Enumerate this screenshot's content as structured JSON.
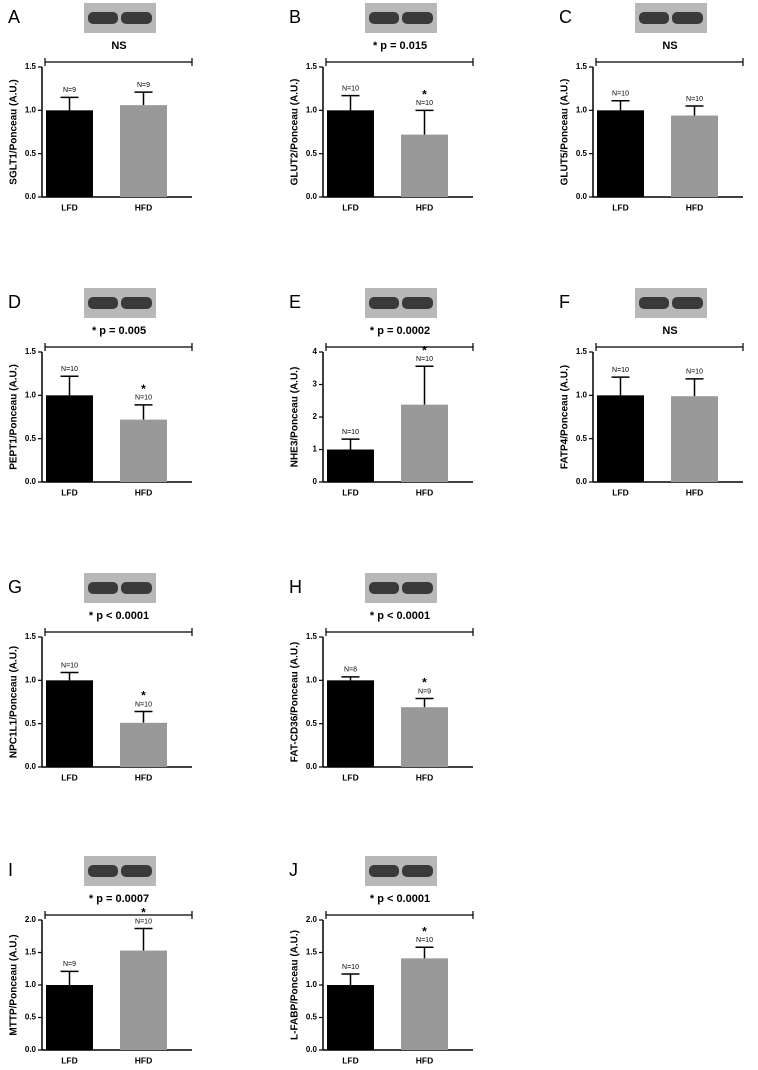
{
  "chart_data": [
    {
      "type": "bar",
      "panel": "A",
      "y_label": "SGLT1/Ponceau (A.U.)",
      "categories": [
        "LFD",
        "HFD"
      ],
      "values": [
        1.0,
        1.06
      ],
      "errors": [
        0.15,
        0.15
      ],
      "colors": [
        "#000000",
        "#999999"
      ],
      "n_labels": [
        "N=9",
        "N=9"
      ],
      "starred": [
        false,
        false
      ],
      "star": "*",
      "annotation": "NS",
      "ylim": [
        0,
        1.5
      ],
      "yticks": [
        {
          "value": 0,
          "label": "0.0"
        },
        {
          "value": 0.5,
          "label": "0.5"
        },
        {
          "value": 1,
          "label": "1.0"
        },
        {
          "value": 1.5,
          "label": "1.5"
        }
      ]
    },
    {
      "type": "bar",
      "panel": "B",
      "y_label": "GLUT2/Ponceau (A.U.)",
      "categories": [
        "LFD",
        "HFD"
      ],
      "values": [
        1.0,
        0.72
      ],
      "errors": [
        0.17,
        0.28
      ],
      "colors": [
        "#000000",
        "#999999"
      ],
      "n_labels": [
        "N=10",
        "N=10"
      ],
      "starred": [
        false,
        true
      ],
      "star": "*",
      "annotation": "* p = 0.015",
      "ylim": [
        0,
        1.5
      ],
      "yticks": [
        {
          "value": 0,
          "label": "0.0"
        },
        {
          "value": 0.5,
          "label": "0.5"
        },
        {
          "value": 1,
          "label": "1.0"
        },
        {
          "value": 1.5,
          "label": "1.5"
        }
      ]
    },
    {
      "type": "bar",
      "panel": "C",
      "y_label": "GLUT5/Ponceau (A.U.)",
      "categories": [
        "LFD",
        "HFD"
      ],
      "values": [
        1.0,
        0.94
      ],
      "errors": [
        0.11,
        0.11
      ],
      "colors": [
        "#000000",
        "#999999"
      ],
      "n_labels": [
        "N=10",
        "N=10"
      ],
      "starred": [
        false,
        false
      ],
      "star": "*",
      "annotation": "NS",
      "ylim": [
        0,
        1.5
      ],
      "yticks": [
        {
          "value": 0,
          "label": "0.0"
        },
        {
          "value": 0.5,
          "label": "0.5"
        },
        {
          "value": 1,
          "label": "1.0"
        },
        {
          "value": 1.5,
          "label": "1.5"
        }
      ]
    },
    {
      "type": "bar",
      "panel": "D",
      "y_label": "PEPT1/Ponceau (A.U.)",
      "categories": [
        "LFD",
        "HFD"
      ],
      "values": [
        1.0,
        0.72
      ],
      "errors": [
        0.22,
        0.17
      ],
      "colors": [
        "#000000",
        "#999999"
      ],
      "n_labels": [
        "N=10",
        "N=10"
      ],
      "starred": [
        false,
        true
      ],
      "star": "*",
      "annotation": "* p = 0.005",
      "ylim": [
        0,
        1.5
      ],
      "yticks": [
        {
          "value": 0,
          "label": "0.0"
        },
        {
          "value": 0.5,
          "label": "0.5"
        },
        {
          "value": 1,
          "label": "1.0"
        },
        {
          "value": 1.5,
          "label": "1.5"
        }
      ]
    },
    {
      "type": "bar",
      "panel": "E",
      "y_label": "NHE3/Ponceau (A.U.)",
      "categories": [
        "LFD",
        "HFD"
      ],
      "values": [
        1.0,
        2.38
      ],
      "errors": [
        0.32,
        1.18
      ],
      "colors": [
        "#000000",
        "#999999"
      ],
      "n_labels": [
        "N=10",
        "N=10"
      ],
      "starred": [
        false,
        true
      ],
      "star": "*",
      "annotation": "* p = 0.0002",
      "ylim": [
        0,
        4
      ],
      "yticks": [
        0,
        1,
        2,
        3,
        4
      ]
    },
    {
      "type": "bar",
      "panel": "F",
      "y_label": "FATP4/Ponceau (A.U.)",
      "categories": [
        "LFD",
        "HFD"
      ],
      "values": [
        1.0,
        0.99
      ],
      "errors": [
        0.21,
        0.2
      ],
      "colors": [
        "#000000",
        "#999999"
      ],
      "n_labels": [
        "N=10",
        "N=10"
      ],
      "starred": [
        false,
        false
      ],
      "star": "*",
      "annotation": "NS",
      "ylim": [
        0,
        1.5
      ],
      "yticks": [
        {
          "value": 0,
          "label": "0.0"
        },
        {
          "value": 0.5,
          "label": "0.5"
        },
        {
          "value": 1,
          "label": "1.0"
        },
        {
          "value": 1.5,
          "label": "1.5"
        }
      ]
    },
    {
      "type": "bar",
      "panel": "G",
      "y_label": "NPC1L1/Ponceau (A.U.)",
      "categories": [
        "LFD",
        "HFD"
      ],
      "values": [
        1.0,
        0.51
      ],
      "errors": [
        0.09,
        0.13
      ],
      "colors": [
        "#000000",
        "#999999"
      ],
      "n_labels": [
        "N=10",
        "N=10"
      ],
      "starred": [
        false,
        true
      ],
      "star": "*",
      "annotation": "* p < 0.0001",
      "ylim": [
        0,
        1.5
      ],
      "yticks": [
        {
          "value": 0,
          "label": "0.0"
        },
        {
          "value": 0.5,
          "label": "0.5"
        },
        {
          "value": 1,
          "label": "1.0"
        },
        {
          "value": 1.5,
          "label": "1.5"
        }
      ]
    },
    {
      "type": "bar",
      "panel": "H",
      "y_label": "FAT-CD36/Ponceau (A.U.)",
      "categories": [
        "LFD",
        "HFD"
      ],
      "values": [
        1.0,
        0.69
      ],
      "errors": [
        0.04,
        0.1
      ],
      "colors": [
        "#000000",
        "#999999"
      ],
      "n_labels": [
        "N=8",
        "N=9"
      ],
      "starred": [
        false,
        true
      ],
      "star": "*",
      "annotation": "* p < 0.0001",
      "ylim": [
        0,
        1.5
      ],
      "yticks": [
        {
          "value": 0,
          "label": "0.0"
        },
        {
          "value": 0.5,
          "label": "0.5"
        },
        {
          "value": 1,
          "label": "1.0"
        },
        {
          "value": 1.5,
          "label": "1.5"
        }
      ]
    },
    {
      "type": "bar",
      "panel": "I",
      "y_label": "MTTP/Ponceau (A.U.)",
      "categories": [
        "LFD",
        "HFD"
      ],
      "values": [
        1.0,
        1.53
      ],
      "errors": [
        0.21,
        0.34
      ],
      "colors": [
        "#000000",
        "#999999"
      ],
      "n_labels": [
        "N=9",
        "N=10"
      ],
      "starred": [
        false,
        true
      ],
      "star": "*",
      "annotation": "* p = 0.0007",
      "ylim": [
        0,
        2
      ],
      "yticks": [
        {
          "value": 0,
          "label": "0.0"
        },
        {
          "value": 0.5,
          "label": "0.5"
        },
        {
          "value": 1,
          "label": "1.0"
        },
        {
          "value": 1.5,
          "label": "1.5"
        },
        {
          "value": 2,
          "label": "2.0"
        }
      ]
    },
    {
      "type": "bar",
      "panel": "J",
      "y_label": "L-FABP/Ponceau (A.U.)",
      "categories": [
        "LFD",
        "HFD"
      ],
      "values": [
        1.0,
        1.41
      ],
      "errors": [
        0.17,
        0.17
      ],
      "colors": [
        "#000000",
        "#999999"
      ],
      "n_labels": [
        "N=10",
        "N=10"
      ],
      "starred": [
        false,
        true
      ],
      "star": "*",
      "annotation": "* p < 0.0001",
      "ylim": [
        0,
        2
      ],
      "yticks": [
        {
          "value": 0,
          "label": "0.0"
        },
        {
          "value": 0.5,
          "label": "0.5"
        },
        {
          "value": 1,
          "label": "1.0"
        },
        {
          "value": 1.5,
          "label": "1.5"
        },
        {
          "value": 2,
          "label": "2.0"
        }
      ]
    }
  ]
}
